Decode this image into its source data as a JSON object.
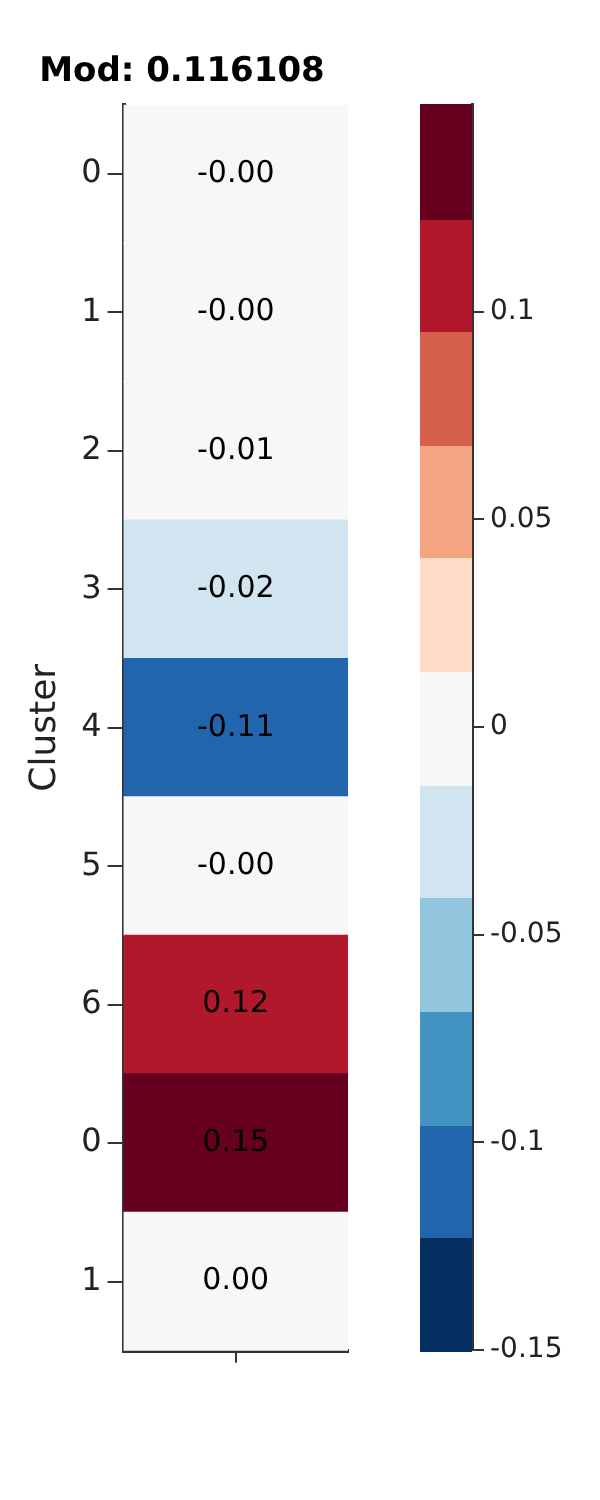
{
  "chart_data": {
    "type": "heatmap",
    "title": "Mod: 0.116108",
    "ylabel": "Cluster",
    "categories": [
      null
    ],
    "y_categories": [
      "0",
      "1",
      "2",
      "3",
      "4",
      "5",
      "6",
      "0",
      "1"
    ],
    "cells": [
      [
        -0.001
      ],
      [
        -0.001
      ],
      [
        -0.01
      ],
      [
        -0.02
      ],
      [
        -0.11
      ],
      [
        -0.001
      ],
      [
        0.12
      ],
      [
        0.15
      ],
      [
        0.0
      ]
    ],
    "cell_labels": [
      [
        "-0.00"
      ],
      [
        "-0.00"
      ],
      [
        "-0.01"
      ],
      [
        "-0.02"
      ],
      [
        "-0.11"
      ],
      [
        "-0.00"
      ],
      [
        "0.12"
      ],
      [
        "0.15"
      ],
      [
        "0.00"
      ]
    ],
    "clim": [
      -0.15,
      0.15
    ],
    "cticks": [
      -0.15,
      -0.1,
      -0.05,
      0,
      0.05,
      0.1
    ],
    "tick_labels": "y"
  }
}
